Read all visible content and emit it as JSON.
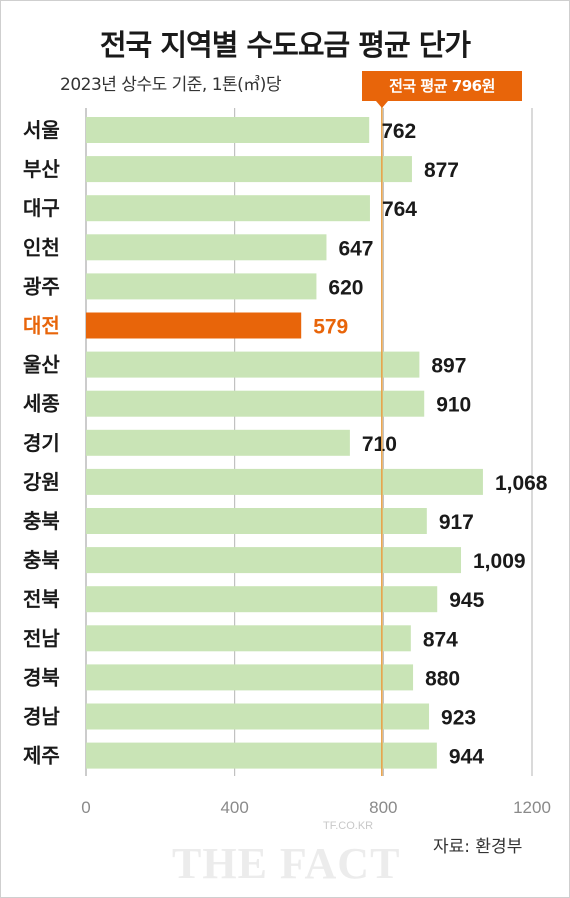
{
  "title": "전국 지역별 수도요금 평균 단가",
  "subtitle": "2023년 상수도 기준, 1톤(㎥)당",
  "average_label": "전국 평균 796원",
  "source": "자료: 환경부",
  "watermark": {
    "small": "TF.CO.KR",
    "large": "THE FACT"
  },
  "colors": {
    "bar": "#c9e4b6",
    "highlight": "#e8650a",
    "average_line": "#e8a24a",
    "grid": "#b5b5b5"
  },
  "chart_data": {
    "type": "bar",
    "orientation": "horizontal",
    "title": "전국 지역별 수도요금 평균 단가",
    "subtitle": "2023년 상수도 기준, 1톤(㎥)당",
    "categories": [
      "서울",
      "부산",
      "대구",
      "인천",
      "광주",
      "대전",
      "울산",
      "세종",
      "경기",
      "강원",
      "충북",
      "충북",
      "전북",
      "전남",
      "경북",
      "경남",
      "제주"
    ],
    "values": [
      762,
      877,
      764,
      647,
      620,
      579,
      897,
      910,
      710,
      1068,
      917,
      1009,
      945,
      874,
      880,
      923,
      944
    ],
    "value_labels": [
      "762",
      "877",
      "764",
      "647",
      "620",
      "579",
      "897",
      "910",
      "710",
      "1,068",
      "917",
      "1,009",
      "945",
      "874",
      "880",
      "923",
      "944"
    ],
    "highlight": "대전",
    "reference_line": {
      "value": 796,
      "label": "전국 평균 796원"
    },
    "xlim": [
      0,
      1200
    ],
    "xticks": [
      0,
      400,
      800,
      1200
    ],
    "grid": true
  }
}
